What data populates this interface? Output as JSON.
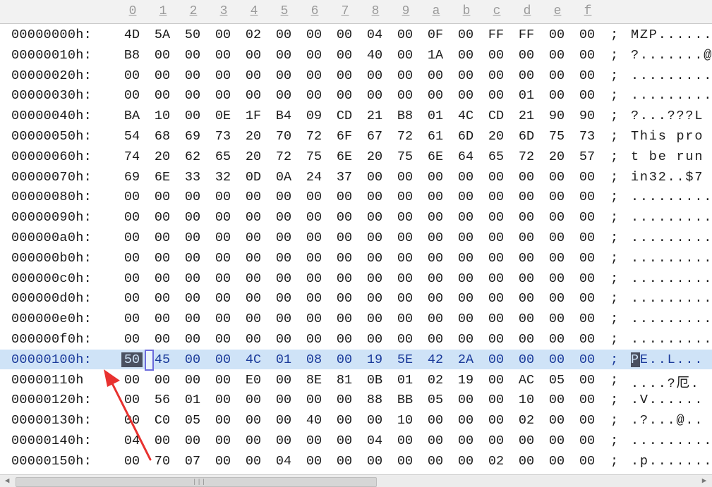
{
  "column_labels": [
    "0",
    "1",
    "2",
    "3",
    "4",
    "5",
    "6",
    "7",
    "8",
    "9",
    "a",
    "b",
    "c",
    "d",
    "e",
    "f"
  ],
  "separator": ";",
  "rows": [
    {
      "offset": "00000000h:",
      "bytes": [
        "4D",
        "5A",
        "50",
        "00",
        "02",
        "00",
        "00",
        "00",
        "04",
        "00",
        "0F",
        "00",
        "FF",
        "FF",
        "00",
        "00"
      ],
      "ascii": "MZP......"
    },
    {
      "offset": "00000010h:",
      "bytes": [
        "B8",
        "00",
        "00",
        "00",
        "00",
        "00",
        "00",
        "00",
        "40",
        "00",
        "1A",
        "00",
        "00",
        "00",
        "00",
        "00"
      ],
      "ascii": "?.......@"
    },
    {
      "offset": "00000020h:",
      "bytes": [
        "00",
        "00",
        "00",
        "00",
        "00",
        "00",
        "00",
        "00",
        "00",
        "00",
        "00",
        "00",
        "00",
        "00",
        "00",
        "00"
      ],
      "ascii": "........."
    },
    {
      "offset": "00000030h:",
      "bytes": [
        "00",
        "00",
        "00",
        "00",
        "00",
        "00",
        "00",
        "00",
        "00",
        "00",
        "00",
        "00",
        "00",
        "01",
        "00",
        "00"
      ],
      "ascii": "........."
    },
    {
      "offset": "00000040h:",
      "bytes": [
        "BA",
        "10",
        "00",
        "0E",
        "1F",
        "B4",
        "09",
        "CD",
        "21",
        "B8",
        "01",
        "4C",
        "CD",
        "21",
        "90",
        "90"
      ],
      "ascii": "?...???L"
    },
    {
      "offset": "00000050h:",
      "bytes": [
        "54",
        "68",
        "69",
        "73",
        "20",
        "70",
        "72",
        "6F",
        "67",
        "72",
        "61",
        "6D",
        "20",
        "6D",
        "75",
        "73"
      ],
      "ascii": "This pro"
    },
    {
      "offset": "00000060h:",
      "bytes": [
        "74",
        "20",
        "62",
        "65",
        "20",
        "72",
        "75",
        "6E",
        "20",
        "75",
        "6E",
        "64",
        "65",
        "72",
        "20",
        "57"
      ],
      "ascii": "t be run"
    },
    {
      "offset": "00000070h:",
      "bytes": [
        "69",
        "6E",
        "33",
        "32",
        "0D",
        "0A",
        "24",
        "37",
        "00",
        "00",
        "00",
        "00",
        "00",
        "00",
        "00",
        "00"
      ],
      "ascii": "in32..$7"
    },
    {
      "offset": "00000080h:",
      "bytes": [
        "00",
        "00",
        "00",
        "00",
        "00",
        "00",
        "00",
        "00",
        "00",
        "00",
        "00",
        "00",
        "00",
        "00",
        "00",
        "00"
      ],
      "ascii": "........."
    },
    {
      "offset": "00000090h:",
      "bytes": [
        "00",
        "00",
        "00",
        "00",
        "00",
        "00",
        "00",
        "00",
        "00",
        "00",
        "00",
        "00",
        "00",
        "00",
        "00",
        "00"
      ],
      "ascii": "........."
    },
    {
      "offset": "000000a0h:",
      "bytes": [
        "00",
        "00",
        "00",
        "00",
        "00",
        "00",
        "00",
        "00",
        "00",
        "00",
        "00",
        "00",
        "00",
        "00",
        "00",
        "00"
      ],
      "ascii": "........."
    },
    {
      "offset": "000000b0h:",
      "bytes": [
        "00",
        "00",
        "00",
        "00",
        "00",
        "00",
        "00",
        "00",
        "00",
        "00",
        "00",
        "00",
        "00",
        "00",
        "00",
        "00"
      ],
      "ascii": "........."
    },
    {
      "offset": "000000c0h:",
      "bytes": [
        "00",
        "00",
        "00",
        "00",
        "00",
        "00",
        "00",
        "00",
        "00",
        "00",
        "00",
        "00",
        "00",
        "00",
        "00",
        "00"
      ],
      "ascii": "........."
    },
    {
      "offset": "000000d0h:",
      "bytes": [
        "00",
        "00",
        "00",
        "00",
        "00",
        "00",
        "00",
        "00",
        "00",
        "00",
        "00",
        "00",
        "00",
        "00",
        "00",
        "00"
      ],
      "ascii": "........."
    },
    {
      "offset": "000000e0h:",
      "bytes": [
        "00",
        "00",
        "00",
        "00",
        "00",
        "00",
        "00",
        "00",
        "00",
        "00",
        "00",
        "00",
        "00",
        "00",
        "00",
        "00"
      ],
      "ascii": "........."
    },
    {
      "offset": "000000f0h:",
      "bytes": [
        "00",
        "00",
        "00",
        "00",
        "00",
        "00",
        "00",
        "00",
        "00",
        "00",
        "00",
        "00",
        "00",
        "00",
        "00",
        "00"
      ],
      "ascii": "........."
    },
    {
      "offset": "00000100h:",
      "bytes": [
        "50",
        "45",
        "00",
        "00",
        "4C",
        "01",
        "08",
        "00",
        "19",
        "5E",
        "42",
        "2A",
        "00",
        "00",
        "00",
        "00"
      ],
      "ascii": "PE..L...",
      "selected": true
    },
    {
      "offset": "00000110h",
      "bytes": [
        "00",
        "00",
        "00",
        "00",
        "E0",
        "00",
        "8E",
        "81",
        "0B",
        "01",
        "02",
        "19",
        "00",
        "AC",
        "05",
        "00"
      ],
      "ascii": "....?厄."
    },
    {
      "offset": "00000120h:",
      "bytes": [
        "00",
        "56",
        "01",
        "00",
        "00",
        "00",
        "00",
        "00",
        "88",
        "BB",
        "05",
        "00",
        "00",
        "10",
        "00",
        "00"
      ],
      "ascii": ".V......"
    },
    {
      "offset": "00000130h:",
      "bytes": [
        "00",
        "C0",
        "05",
        "00",
        "00",
        "00",
        "40",
        "00",
        "00",
        "10",
        "00",
        "00",
        "00",
        "02",
        "00",
        "00"
      ],
      "ascii": ".?...@.."
    },
    {
      "offset": "00000140h:",
      "bytes": [
        "04",
        "00",
        "00",
        "00",
        "00",
        "00",
        "00",
        "00",
        "04",
        "00",
        "00",
        "00",
        "00",
        "00",
        "00",
        "00"
      ],
      "ascii": "........."
    },
    {
      "offset": "00000150h:",
      "bytes": [
        "00",
        "70",
        "07",
        "00",
        "00",
        "04",
        "00",
        "00",
        "00",
        "00",
        "00",
        "00",
        "02",
        "00",
        "00",
        "00"
      ],
      "ascii": ".p......."
    }
  ],
  "colors": {
    "selection_row": "#cfe3f7",
    "selection_text": "#1a3a9a",
    "cursor_block": "#4a5060",
    "annotation_arrow": "#e8312f"
  },
  "icons": {
    "scroll_left": "triangle-left-icon",
    "scroll_right": "triangle-right-icon",
    "annotation": "red-arrow-icon"
  }
}
